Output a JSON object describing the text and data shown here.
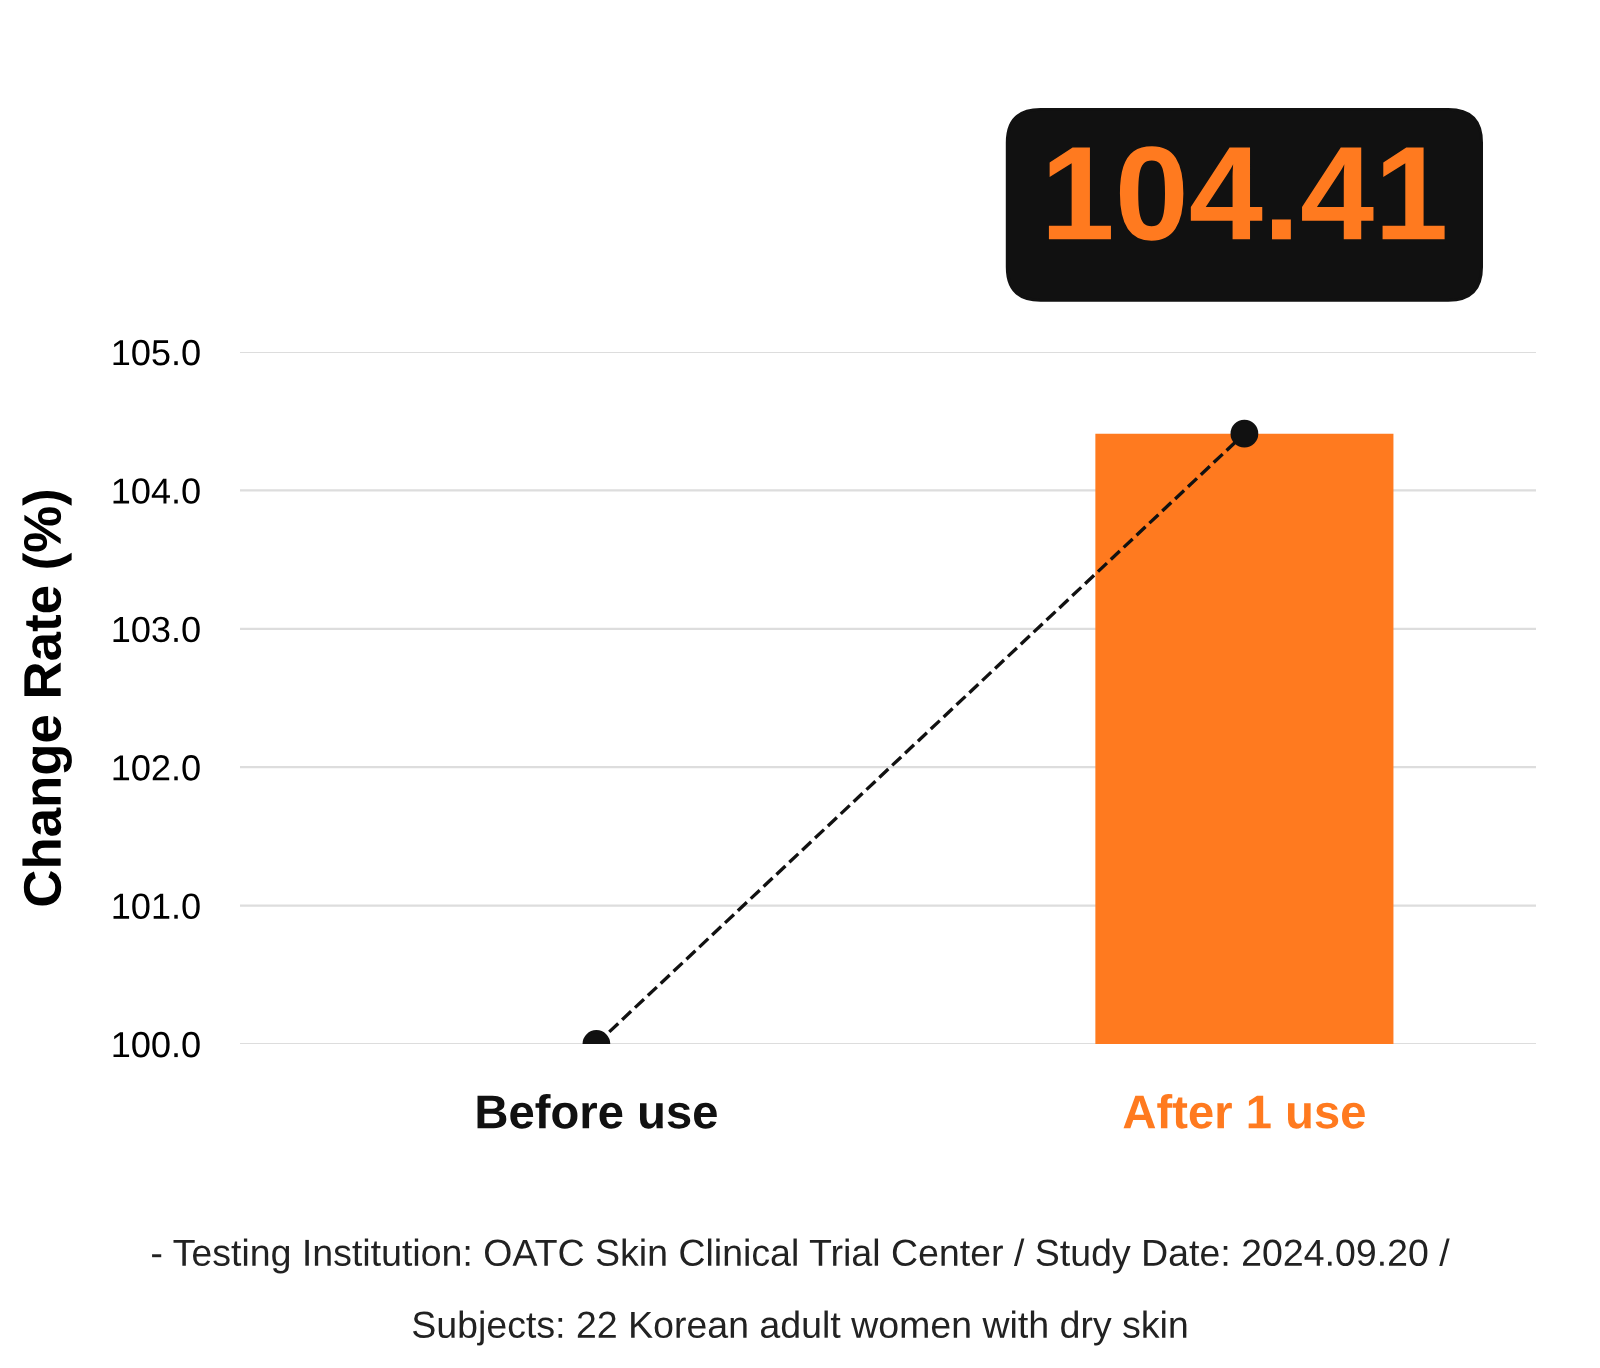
{
  "chart_data": {
    "type": "bar",
    "ylabel": "Change Rate (%)",
    "categories": [
      "Before use",
      "After 1 use"
    ],
    "series": [
      {
        "colors": [
          "#111111",
          "#ff7a1f"
        ],
        "values": [
          100,
          104.41
        ]
      },
      {
        "type": "line",
        "color": "#111111",
        "values": [
          100,
          104.41
        ],
        "marker": "circle",
        "line_style": "dashed",
        "value_labels": [
          null,
          "104.41"
        ]
      }
    ],
    "ylim": [
      100,
      105
    ],
    "yticks": [
      {
        "value": 100,
        "label": "100.0"
      },
      {
        "value": 101,
        "label": "101.0"
      },
      {
        "value": 102,
        "label": "102.0"
      },
      {
        "value": 103,
        "label": "103.0"
      },
      {
        "value": 104,
        "label": "104.0"
      },
      {
        "value": 105,
        "label": "105.0"
      }
    ],
    "grid": "y",
    "annotations": [
      "- Testing Institution: OATC Skin Clinical Trial Center / Study Date: 2024.09.20 /",
      "Subjects: 22 Korean adult women with dry skin"
    ]
  }
}
